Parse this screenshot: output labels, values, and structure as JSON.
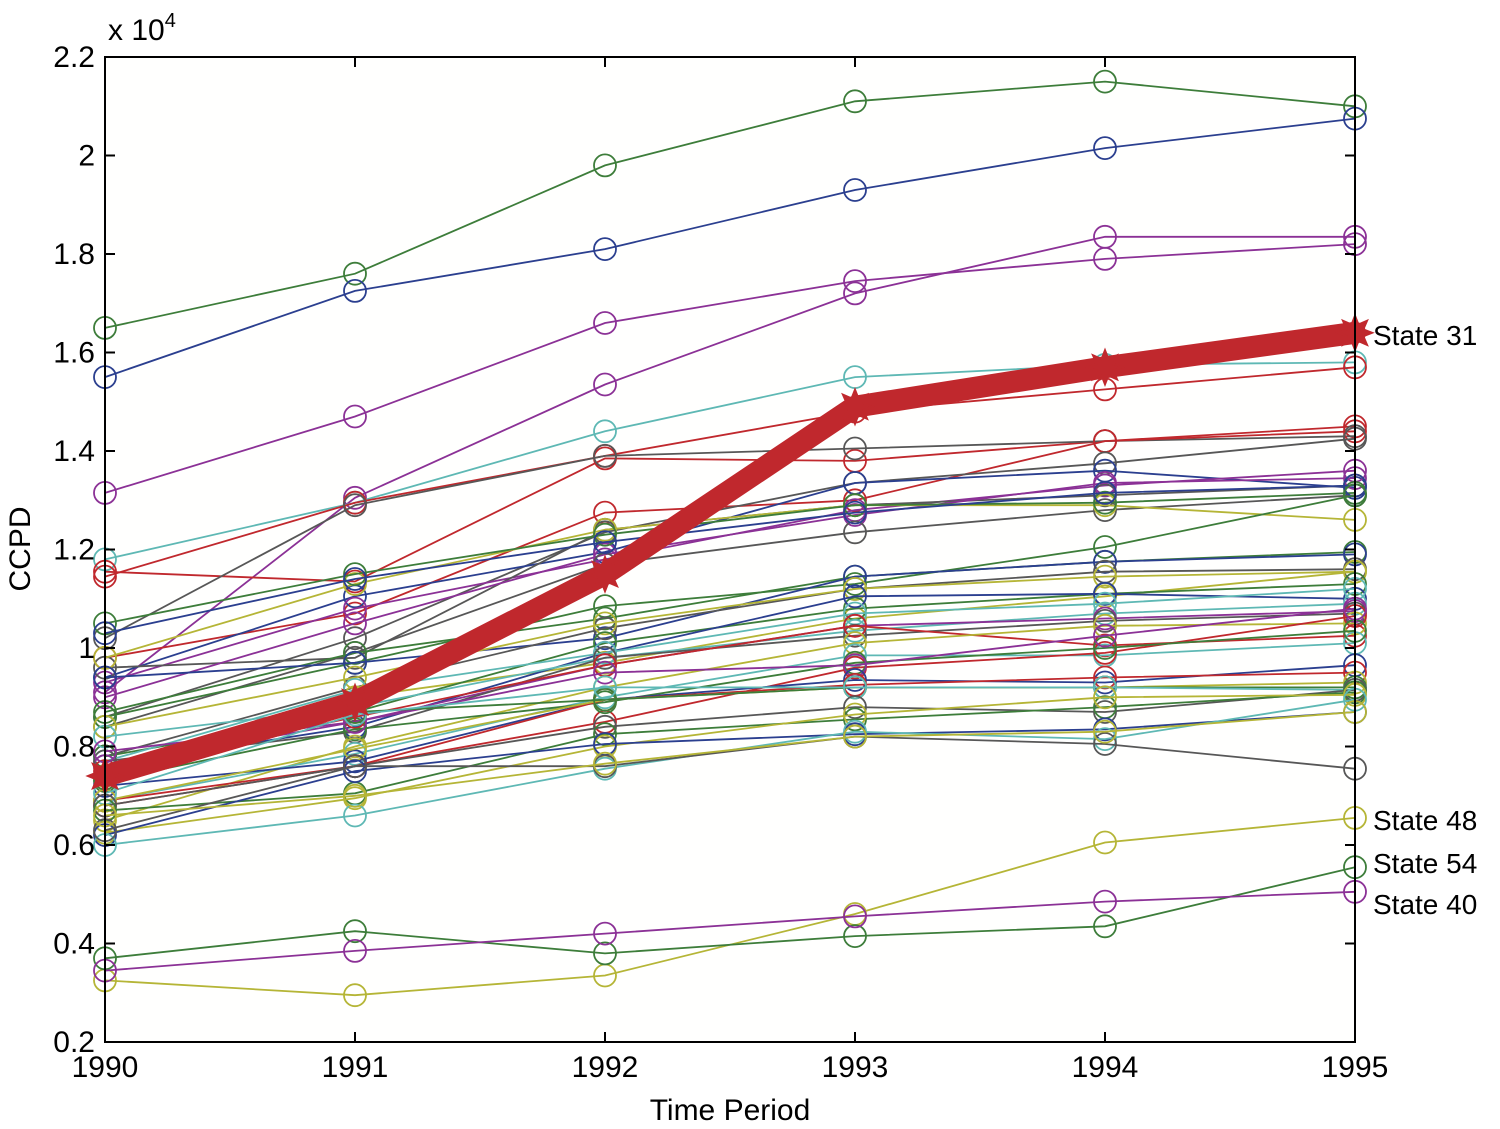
{
  "chart_data": {
    "type": "line",
    "title": "",
    "xlabel": "Time Period",
    "ylabel": "CCPD",
    "exponent_label": "x 10",
    "exponent_power": "4",
    "x": [
      1990,
      1991,
      1992,
      1993,
      1994,
      1995
    ],
    "x_tick_labels": [
      "1990",
      "1991",
      "1992",
      "1993",
      "1994",
      "1995"
    ],
    "xlim": [
      1990,
      1995
    ],
    "ylim": [
      2000,
      22000
    ],
    "y_ticks": [
      2000,
      4000,
      6000,
      8000,
      10000,
      12000,
      14000,
      16000,
      18000,
      20000,
      22000
    ],
    "y_tick_labels": [
      "0.2",
      "0.4",
      "0.6",
      "0.8",
      "1",
      "1.2",
      "1.4",
      "1.6",
      "1.8",
      "2",
      "2.2"
    ],
    "grid": false,
    "legend": "none",
    "annotations": [
      {
        "text": "State 31",
        "series": "highlight"
      },
      {
        "text": "State 48",
        "series": "s48"
      },
      {
        "text": "State 54",
        "series": "s54"
      },
      {
        "text": "State 40",
        "series": "s40"
      }
    ],
    "highlight": {
      "values": [
        7400,
        8900,
        11500,
        14900,
        15700,
        16400
      ],
      "color": "#c0282d"
    },
    "colors": {
      "green": "#3d7d3a",
      "blue": "#2b3f8f",
      "purple": "#8b3196",
      "red": "#c0282d",
      "cyan": "#5eb8b4",
      "olive": "#b5b536",
      "gray": "#575757"
    },
    "series": [
      {
        "color": "green",
        "values": [
          16500,
          17600,
          19800,
          21100,
          21500,
          21000
        ]
      },
      {
        "color": "blue",
        "values": [
          15500,
          17250,
          18100,
          19300,
          20150,
          20750
        ]
      },
      {
        "color": "purple",
        "values": [
          13150,
          14700,
          16600,
          17450,
          17900,
          18200
        ]
      },
      {
        "color": "purple",
        "values": [
          9100,
          13050,
          15350,
          17200,
          18350,
          18350
        ]
      },
      {
        "color": "cyan",
        "values": [
          11800,
          12950,
          14400,
          15500,
          15750,
          15800
        ]
      },
      {
        "color": "red",
        "values": [
          11450,
          12950,
          13900,
          14800,
          15250,
          15700
        ]
      },
      {
        "color": "red",
        "values": [
          11550,
          11350,
          13850,
          13800,
          14200,
          14500
        ]
      },
      {
        "color": "gray",
        "values": [
          10200,
          12900,
          13900,
          14050,
          14200,
          14300
        ]
      },
      {
        "color": "red",
        "values": [
          9800,
          10700,
          12750,
          13000,
          14200,
          14400
        ]
      },
      {
        "color": "gray",
        "values": [
          8600,
          10200,
          12350,
          13350,
          13750,
          14250
        ]
      },
      {
        "color": "blue",
        "values": [
          9400,
          11050,
          11950,
          13350,
          13600,
          13250
        ]
      },
      {
        "color": "purple",
        "values": [
          9300,
          10800,
          11800,
          12800,
          13300,
          13600
        ]
      },
      {
        "color": "gray",
        "values": [
          9600,
          9800,
          12400,
          12900,
          13100,
          13300
        ]
      },
      {
        "color": "purple",
        "values": [
          9000,
          10500,
          11900,
          12700,
          13350,
          13450
        ]
      },
      {
        "color": "gray",
        "values": [
          8400,
          9900,
          11700,
          12350,
          12800,
          13100
        ]
      },
      {
        "color": "olive",
        "values": [
          9800,
          11300,
          12400,
          12900,
          12900,
          12600
        ]
      },
      {
        "color": "green",
        "values": [
          10500,
          11500,
          12300,
          12900,
          12950,
          13150
        ]
      },
      {
        "color": "blue",
        "values": [
          10300,
          11400,
          12150,
          12750,
          13150,
          13300
        ]
      },
      {
        "color": "green",
        "values": [
          8600,
          9700,
          10850,
          11300,
          12050,
          13100
        ]
      },
      {
        "color": "green",
        "values": [
          8700,
          9900,
          10600,
          11450,
          11750,
          11950
        ]
      },
      {
        "color": "blue",
        "values": [
          9400,
          9700,
          10200,
          11450,
          11750,
          11900
        ]
      },
      {
        "color": "gray",
        "values": [
          7800,
          9200,
          10400,
          11200,
          11550,
          11600
        ]
      },
      {
        "color": "olive",
        "values": [
          8400,
          9400,
          10500,
          11200,
          11450,
          11550
        ]
      },
      {
        "color": "olive",
        "values": [
          7400,
          9000,
          9700,
          10600,
          11050,
          11550
        ]
      },
      {
        "color": "green",
        "values": [
          7800,
          8700,
          10100,
          10800,
          11100,
          11300
        ]
      },
      {
        "color": "blue",
        "values": [
          7600,
          8400,
          9900,
          11050,
          11100,
          11000
        ]
      },
      {
        "color": "cyan",
        "values": [
          7700,
          9150,
          9900,
          10700,
          10900,
          11200
        ]
      },
      {
        "color": "cyan",
        "values": [
          8200,
          8800,
          9800,
          10350,
          10700,
          10900
        ]
      },
      {
        "color": "purple",
        "values": [
          7600,
          8500,
          9650,
          10450,
          10600,
          10750
        ]
      },
      {
        "color": "gray",
        "values": [
          7700,
          8300,
          9800,
          10250,
          10550,
          10700
        ]
      },
      {
        "color": "red",
        "values": [
          7500,
          8600,
          9650,
          10450,
          10050,
          10250
        ]
      },
      {
        "color": "olive",
        "values": [
          6500,
          8000,
          9200,
          10100,
          10450,
          10500
        ]
      },
      {
        "color": "cyan",
        "values": [
          6900,
          7850,
          9000,
          9850,
          9850,
          10100
        ]
      },
      {
        "color": "red",
        "values": [
          6800,
          7600,
          8500,
          9600,
          9900,
          10650
        ]
      },
      {
        "color": "green",
        "values": [
          7300,
          8350,
          8900,
          9700,
          10000,
          10350
        ]
      },
      {
        "color": "purple",
        "values": [
          7900,
          8500,
          9500,
          9650,
          10250,
          10800
        ]
      },
      {
        "color": "blue",
        "values": [
          7200,
          7700,
          8950,
          9350,
          9300,
          9650
        ]
      },
      {
        "color": "red",
        "values": [
          6900,
          7600,
          8950,
          9250,
          9400,
          9500
        ]
      },
      {
        "color": "olive",
        "values": [
          6900,
          7950,
          8950,
          9200,
          9200,
          9300
        ]
      },
      {
        "color": "green",
        "values": [
          7350,
          8700,
          8950,
          9200,
          9200,
          9200
        ]
      },
      {
        "color": "cyan",
        "values": [
          7050,
          8650,
          9200,
          9200,
          9200,
          9150
        ]
      },
      {
        "color": "gray",
        "values": [
          6800,
          7600,
          8400,
          8800,
          8700,
          9150
        ]
      },
      {
        "color": "green",
        "values": [
          6700,
          7050,
          8250,
          8550,
          8800,
          9100
        ]
      },
      {
        "color": "olive",
        "values": [
          6250,
          6950,
          8000,
          8650,
          9000,
          9050
        ]
      },
      {
        "color": "blue",
        "values": [
          6200,
          7500,
          8050,
          8250,
          8350,
          8700
        ]
      },
      {
        "color": "cyan",
        "values": [
          6000,
          6600,
          7550,
          8300,
          8150,
          8950
        ]
      },
      {
        "color": "gray",
        "values": [
          6300,
          7600,
          7600,
          8200,
          8050,
          7550
        ]
      },
      {
        "color": "olive",
        "values": [
          6600,
          7000,
          7650,
          8200,
          8300,
          8700
        ]
      },
      {
        "id": "s48",
        "color": "olive",
        "values": [
          3250,
          2950,
          3350,
          4600,
          6050,
          6550
        ]
      },
      {
        "id": "s54",
        "color": "green",
        "values": [
          3700,
          4250,
          3800,
          4150,
          4350,
          5550
        ]
      },
      {
        "id": "s40",
        "color": "purple",
        "values": [
          3450,
          3850,
          4200,
          4550,
          4850,
          5050
        ]
      }
    ]
  }
}
